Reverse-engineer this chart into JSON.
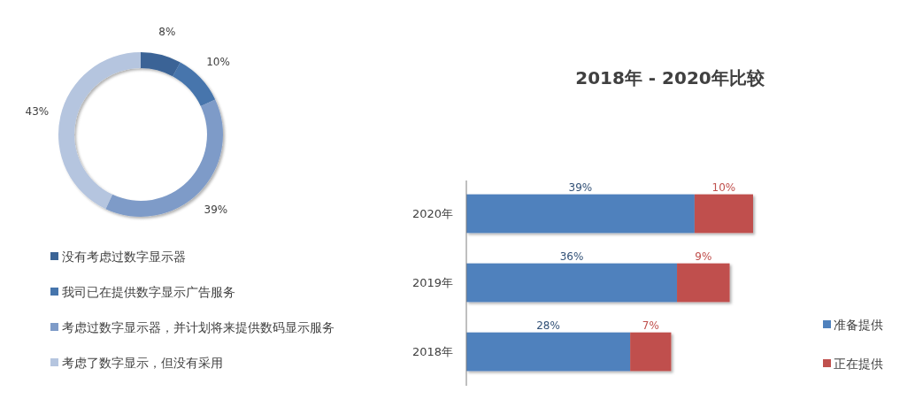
{
  "chart_data": [
    {
      "type": "donut",
      "categories": [
        "没有考虑过数字显示器",
        "我司已在提供数字显示广告服务",
        "考虑过数字显示器，并计划将来提供数码显示服务",
        "考虑了数字显示，但没有采用"
      ],
      "values": [
        8,
        10,
        39,
        43
      ],
      "colors": [
        "#3b6496",
        "#4675ac",
        "#7e9bc8",
        "#b5c5df"
      ],
      "value_labels": [
        "8%",
        "10%",
        "39%",
        "43%"
      ],
      "legend": "bottom"
    },
    {
      "type": "bar",
      "orientation": "horizontal",
      "stacked": true,
      "title": "2018年 - 2020年比较",
      "categories": [
        "2020年",
        "2019年",
        "2018年"
      ],
      "series": [
        {
          "name": "准备提供",
          "color": "#4f81bd",
          "values": [
            39,
            36,
            28
          ],
          "value_labels": [
            "39%",
            "36%",
            "28%"
          ]
        },
        {
          "name": "正在提供",
          "color": "#c0504d",
          "values": [
            10,
            9,
            7
          ],
          "value_labels": [
            "10%",
            "9%",
            "7%"
          ]
        }
      ],
      "legend": "bottom right"
    }
  ]
}
